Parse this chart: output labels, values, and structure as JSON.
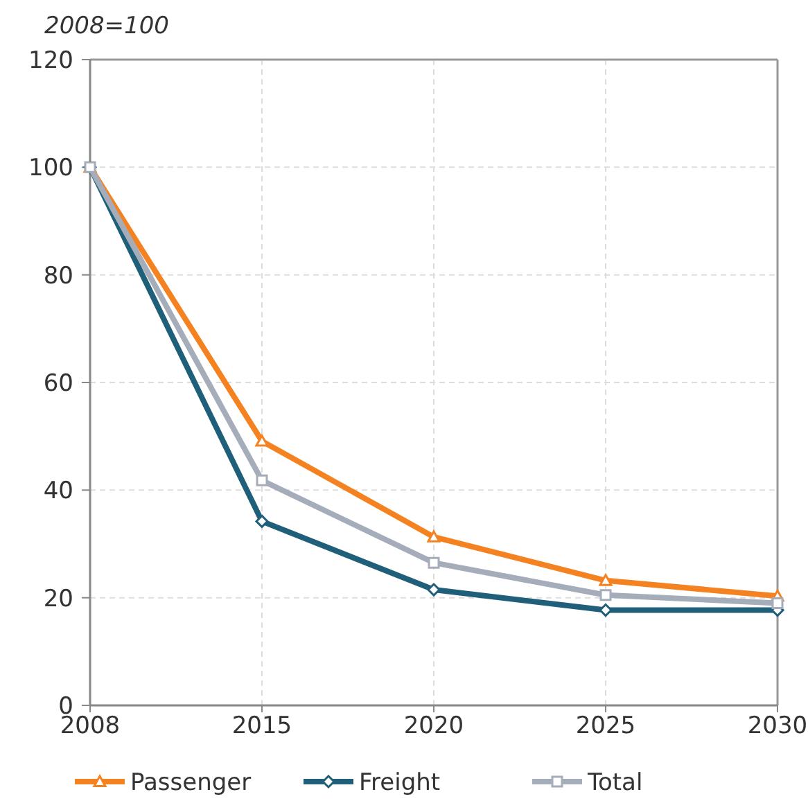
{
  "chart_data": {
    "type": "line",
    "ylabel": "2008=100",
    "categories": [
      "2008",
      "2015",
      "2020",
      "2025",
      "2030"
    ],
    "series": [
      {
        "name": "Passenger",
        "color": "#f58220",
        "marker": "triangle",
        "values": [
          100,
          49.1,
          31.3,
          23.2,
          20.3
        ]
      },
      {
        "name": "Freight",
        "color": "#1f5f7a",
        "marker": "diamond",
        "values": [
          100,
          34.2,
          21.5,
          17.7,
          17.7
        ]
      },
      {
        "name": "Total",
        "color": "#a5adba",
        "marker": "square",
        "values": [
          100,
          41.8,
          26.5,
          20.5,
          19.0
        ]
      }
    ],
    "ylim": [
      0,
      120
    ],
    "yticks": [
      0,
      20,
      40,
      60,
      80,
      100,
      120
    ],
    "grid": true,
    "legend": "bottom"
  }
}
